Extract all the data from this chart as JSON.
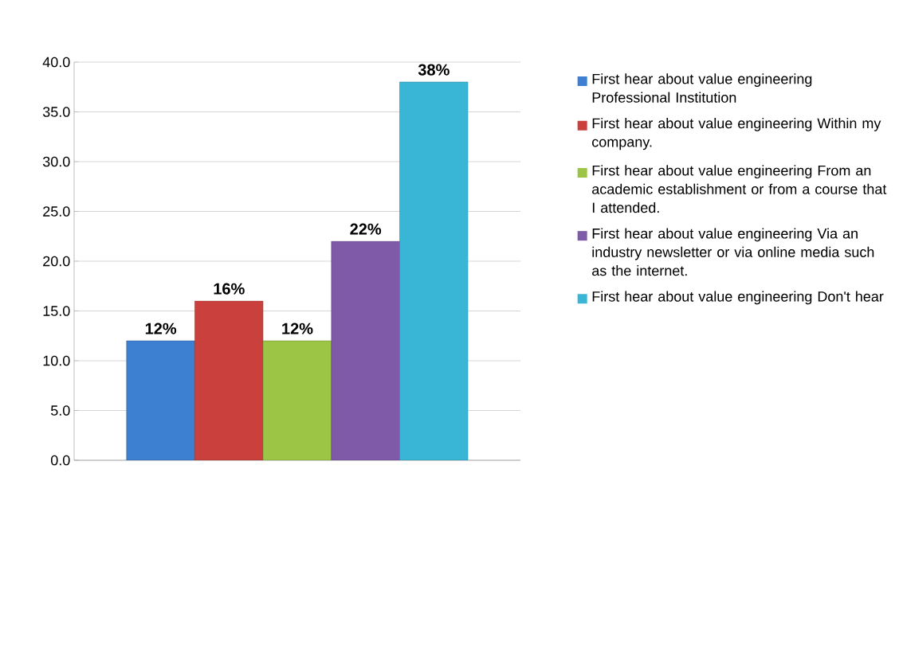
{
  "chart_data": {
    "type": "bar",
    "categories": [
      null
    ],
    "series": [
      {
        "name": "First hear about value engineering Professional Institution",
        "color": "#3d7fd0",
        "values": [
          12
        ],
        "value_labels": [
          "12%"
        ]
      },
      {
        "name": "First hear about value engineering Within my company.",
        "color": "#c9403c",
        "values": [
          16
        ],
        "value_labels": [
          "16%"
        ]
      },
      {
        "name": "First hear about value engineering From an academic establishment or from a course that I attended.",
        "color": "#9cc445",
        "values": [
          12
        ],
        "value_labels": [
          "12%"
        ]
      },
      {
        "name": "First hear about value engineering Via an industry newsletter or via online media such as the internet.",
        "color": "#7f5aa8",
        "values": [
          22
        ],
        "value_labels": [
          "22%"
        ]
      },
      {
        "name": "First hear about value engineering Don't hear",
        "color": "#39b6d6",
        "values": [
          38
        ],
        "value_labels": [
          "38%"
        ]
      }
    ],
    "ylim": [
      0,
      40
    ],
    "yticks": [
      {
        "value": 0,
        "label": "0.0"
      },
      {
        "value": 5,
        "label": "5.0"
      },
      {
        "value": 10,
        "label": "10.0"
      },
      {
        "value": 15,
        "label": "15.0"
      },
      {
        "value": 20,
        "label": "20.0"
      },
      {
        "value": 25,
        "label": "25.0"
      },
      {
        "value": 30,
        "label": "30.0"
      },
      {
        "value": 35,
        "label": "35.0"
      },
      {
        "value": 40,
        "label": "40.0"
      }
    ],
    "grid": "y",
    "legend": "right"
  }
}
